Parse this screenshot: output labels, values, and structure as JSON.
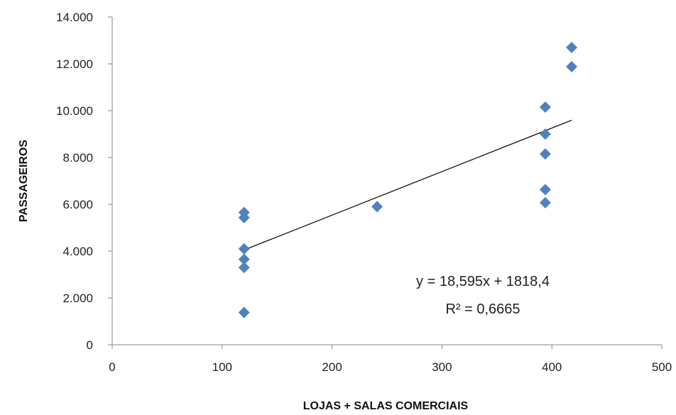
{
  "chart_data": {
    "type": "scatter",
    "title": "",
    "xlabel": "LOJAS + SALAS COMERCIAIS",
    "ylabel": "PASSAGEIROS",
    "xlim": [
      0,
      500
    ],
    "ylim": [
      0,
      14000
    ],
    "xticks": [
      0,
      100,
      200,
      300,
      400,
      500
    ],
    "xtick_labels": [
      "0",
      "100",
      "200",
      "300",
      "400",
      "500"
    ],
    "yticks": [
      0,
      2000,
      4000,
      6000,
      8000,
      10000,
      12000,
      14000
    ],
    "ytick_labels": [
      "0",
      "2.000",
      "4.000",
      "6.000",
      "8.000",
      "10.000",
      "12.000",
      "14.000"
    ],
    "grid": false,
    "legend": "none",
    "marker": "diamond",
    "marker_color": "#4F81BD",
    "series": [
      {
        "points": [
          {
            "x": 120,
            "y": 5650
          },
          {
            "x": 120,
            "y": 5430
          },
          {
            "x": 120,
            "y": 4100
          },
          {
            "x": 120,
            "y": 3650
          },
          {
            "x": 120,
            "y": 3300
          },
          {
            "x": 120,
            "y": 1380
          },
          {
            "x": 241,
            "y": 5900
          },
          {
            "x": 394,
            "y": 10150
          },
          {
            "x": 394,
            "y": 9000
          },
          {
            "x": 394,
            "y": 8150
          },
          {
            "x": 394,
            "y": 6630
          },
          {
            "x": 394,
            "y": 6070
          },
          {
            "x": 418,
            "y": 12700
          },
          {
            "x": 418,
            "y": 11880
          }
        ]
      }
    ],
    "trendline": {
      "type": "linear",
      "slope": 18.595,
      "intercept": 1818.4,
      "x_range": [
        120,
        418
      ],
      "color": "#000000",
      "equation_label": "y = 18,595x + 1818,4",
      "r2_label": "R² = 0,6665"
    }
  }
}
